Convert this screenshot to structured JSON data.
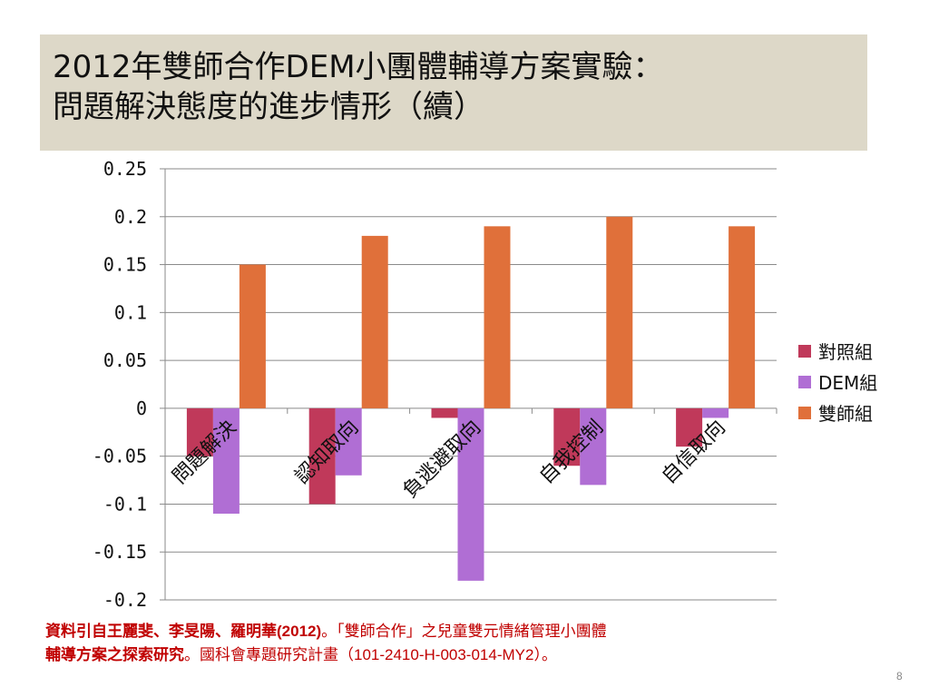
{
  "slide": {
    "title_line1": "2012年雙師合作DEM小團體輔導方案實驗：",
    "title_line2": "問題解決態度的進步情形（續）",
    "source_part1": "資料引自王麗斐、李旻陽、羅明華(2012)",
    "source_part2": "。「雙師合作」之兒童雙元情緒管理小團體",
    "source_part3": "輔導方案之探索研究",
    "source_part4": "。國科會專題研究計畫（101-2410-H-003-014-MY2）。",
    "page_number": "8"
  },
  "chart_data": {
    "type": "bar",
    "categories": [
      "問題解決",
      "認知取向",
      "負逃避取向",
      "自我控制",
      "自信取向"
    ],
    "series": [
      {
        "name": "對照組",
        "color": "#c0395a",
        "values": [
          -0.05,
          -0.1,
          -0.01,
          -0.06,
          -0.04
        ]
      },
      {
        "name": "DEM組",
        "color": "#b06ed4",
        "values": [
          -0.11,
          -0.07,
          -0.18,
          -0.08,
          -0.01
        ]
      },
      {
        "name": "雙師組",
        "color": "#e0703a",
        "values": [
          0.15,
          0.18,
          0.19,
          0.2,
          0.19
        ]
      }
    ],
    "ylim": [
      -0.2,
      0.25
    ],
    "yticks": [
      "0.25",
      "0.2",
      "0.15",
      "0.1",
      "0.05",
      "0",
      "-0.05",
      "-0.1",
      "-0.15",
      "-0.2"
    ],
    "ytick_values": [
      0.25,
      0.2,
      0.15,
      0.1,
      0.05,
      0,
      -0.05,
      -0.1,
      -0.15,
      -0.2
    ],
    "grid": true,
    "legend_position": "right"
  }
}
